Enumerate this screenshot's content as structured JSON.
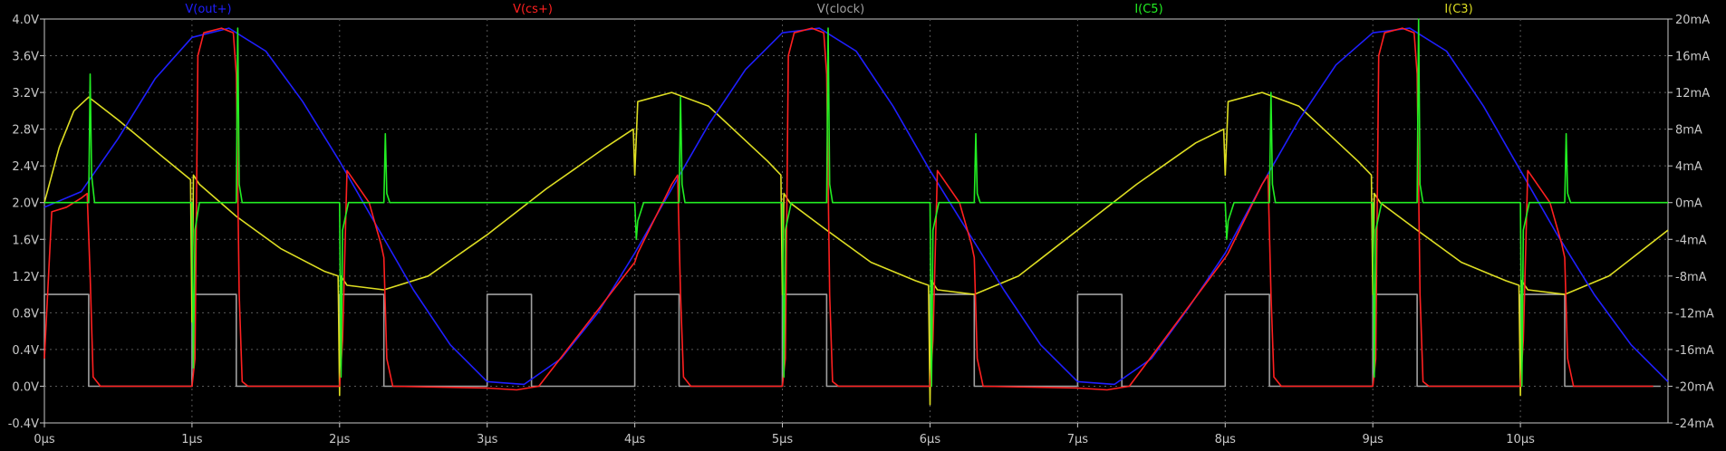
{
  "chart_data": {
    "type": "line",
    "title": "",
    "xlabel": "",
    "ylabel": "",
    "xlim": [
      0,
      11
    ],
    "ylim": [
      -0.4,
      4.0
    ],
    "y2lim": [
      -24,
      20
    ],
    "grid": true,
    "legend_placement": "top",
    "x_ticks": [
      {
        "v": 0,
        "label": "0µs"
      },
      {
        "v": 1,
        "label": "1µs"
      },
      {
        "v": 2,
        "label": "2µs"
      },
      {
        "v": 3,
        "label": "3µs"
      },
      {
        "v": 4,
        "label": "4µs"
      },
      {
        "v": 5,
        "label": "5µs"
      },
      {
        "v": 6,
        "label": "6µs"
      },
      {
        "v": 7,
        "label": "7µs"
      },
      {
        "v": 8,
        "label": "8µs"
      },
      {
        "v": 9,
        "label": "9µs"
      },
      {
        "v": 10,
        "label": "10µs"
      }
    ],
    "y_ticks": [
      {
        "v": 4.0,
        "label": "4.0V"
      },
      {
        "v": 3.6,
        "label": "3.6V"
      },
      {
        "v": 3.2,
        "label": "3.2V"
      },
      {
        "v": 2.8,
        "label": "2.8V"
      },
      {
        "v": 2.4,
        "label": "2.4V"
      },
      {
        "v": 2.0,
        "label": "2.0V"
      },
      {
        "v": 1.6,
        "label": "1.6V"
      },
      {
        "v": 1.2,
        "label": "1.2V"
      },
      {
        "v": 0.8,
        "label": "0.8V"
      },
      {
        "v": 0.4,
        "label": "0.4V"
      },
      {
        "v": 0.0,
        "label": "0.0V"
      },
      {
        "v": -0.4,
        "label": "-0.4V"
      }
    ],
    "y2_ticks": [
      {
        "v": 20,
        "label": "20mA"
      },
      {
        "v": 16,
        "label": "16mA"
      },
      {
        "v": 12,
        "label": "12mA"
      },
      {
        "v": 8,
        "label": "8mA"
      },
      {
        "v": 4,
        "label": "4mA"
      },
      {
        "v": 0,
        "label": "0mA"
      },
      {
        "v": -4,
        "label": "-4mA"
      },
      {
        "v": -8,
        "label": "-8mA"
      },
      {
        "v": -12,
        "label": "-12mA"
      },
      {
        "v": -16,
        "label": "-16mA"
      },
      {
        "v": -20,
        "label": "-20mA"
      },
      {
        "v": -24,
        "label": "-24mA"
      }
    ],
    "series": [
      {
        "name": "V(out+)",
        "color": "#1f1fff",
        "axis": "left",
        "x": [
          0,
          0.25,
          0.5,
          0.75,
          1.0,
          1.25,
          1.5,
          1.75,
          2.0,
          2.25,
          2.5,
          2.75,
          3.0,
          3.25,
          3.5,
          3.75,
          4.0,
          4.25,
          4.5,
          4.75,
          5.0,
          5.25,
          5.5,
          5.75,
          6.0,
          6.25,
          6.5,
          6.75,
          7.0,
          7.25,
          7.5,
          7.75,
          8.0,
          8.25,
          8.5,
          8.75,
          9.0,
          9.25,
          9.5,
          9.75,
          10.0,
          10.25,
          10.5,
          10.75,
          11.0
        ],
        "values": [
          1.95,
          2.12,
          2.7,
          3.35,
          3.8,
          3.9,
          3.65,
          3.1,
          2.45,
          1.75,
          1.05,
          0.45,
          0.05,
          0.02,
          0.3,
          0.8,
          1.45,
          2.15,
          2.85,
          3.45,
          3.85,
          3.9,
          3.65,
          3.05,
          2.35,
          1.7,
          1.05,
          0.45,
          0.05,
          0.02,
          0.3,
          0.85,
          1.45,
          2.2,
          2.9,
          3.5,
          3.85,
          3.9,
          3.65,
          3.05,
          2.35,
          1.65,
          1.0,
          0.45,
          0.05
        ]
      },
      {
        "name": "V(cs+)",
        "color": "#ff2020",
        "axis": "left",
        "x": [
          0,
          0.05,
          0.15,
          0.25,
          0.29,
          0.31,
          0.33,
          0.38,
          1.0,
          1.02,
          1.04,
          1.08,
          1.2,
          1.28,
          1.3,
          1.32,
          1.34,
          1.38,
          2.0,
          2.02,
          2.05,
          2.2,
          2.28,
          2.3,
          2.32,
          2.36,
          3.0,
          3.2,
          3.35,
          4.0,
          4.02,
          4.25,
          4.29,
          4.31,
          4.33,
          4.38,
          5.0,
          5.02,
          5.04,
          5.08,
          5.2,
          5.28,
          5.3,
          5.32,
          5.34,
          5.38,
          6.0,
          6.02,
          6.05,
          6.2,
          6.28,
          6.3,
          6.32,
          6.36,
          7.0,
          7.2,
          7.35,
          8.0,
          8.02,
          8.25,
          8.29,
          8.31,
          8.33,
          8.38,
          9.0,
          9.02,
          9.04,
          9.08,
          9.2,
          9.28,
          9.3,
          9.32,
          9.34,
          9.38,
          10.0,
          10.02,
          10.05,
          10.2,
          10.28,
          10.3,
          10.32,
          10.36,
          10.9
        ],
        "values": [
          0.3,
          1.9,
          1.95,
          2.05,
          2.1,
          1.2,
          0.1,
          0.0,
          0.0,
          0.3,
          3.6,
          3.85,
          3.9,
          3.85,
          3.4,
          1.0,
          0.05,
          0.0,
          0.0,
          0.5,
          2.35,
          2.0,
          1.55,
          1.4,
          0.3,
          0.0,
          -0.02,
          -0.04,
          0.0,
          1.35,
          1.45,
          2.2,
          2.3,
          1.0,
          0.1,
          0.0,
          0.0,
          0.3,
          3.6,
          3.85,
          3.9,
          3.85,
          3.4,
          1.0,
          0.05,
          0.0,
          0.0,
          0.5,
          2.35,
          2.0,
          1.55,
          1.4,
          0.3,
          0.0,
          -0.02,
          -0.04,
          0.0,
          1.4,
          1.45,
          2.2,
          2.3,
          1.0,
          0.1,
          0.0,
          0.0,
          0.3,
          3.6,
          3.85,
          3.9,
          3.85,
          3.4,
          1.0,
          0.05,
          0.0,
          0.0,
          0.5,
          2.35,
          2.0,
          1.55,
          1.4,
          0.3,
          0.0,
          0.0
        ]
      },
      {
        "name": "V(clock)",
        "color": "#a0a0a0",
        "axis": "left",
        "x": [
          0,
          0.0,
          0.3,
          0.3,
          1.0,
          1.0,
          1.3,
          1.3,
          2.0,
          2.0,
          2.3,
          2.3,
          3.0,
          3.0,
          3.3,
          3.3,
          4.0,
          4.0,
          4.3,
          4.3,
          5.0,
          5.0,
          5.3,
          5.3,
          6.0,
          6.0,
          6.3,
          6.3,
          7.0,
          7.0,
          7.3,
          7.3,
          8.0,
          8.0,
          8.3,
          8.3,
          9.0,
          9.0,
          9.3,
          9.3,
          10.0,
          10.0,
          10.3,
          10.3,
          10.95
        ],
        "values": [
          0,
          1,
          1,
          0,
          0,
          1,
          1,
          0,
          0,
          1,
          1,
          0,
          0,
          1,
          1,
          0,
          0,
          1,
          1,
          0,
          0,
          1,
          1,
          0,
          0,
          1,
          1,
          0,
          0,
          1,
          1,
          0,
          0,
          1,
          1,
          0,
          0,
          1,
          1,
          0,
          0,
          1,
          1,
          0,
          0
        ]
      },
      {
        "name": "I(C5)",
        "color": "#22ee22",
        "axis": "right",
        "x": [
          0,
          0.3,
          0.31,
          0.32,
          0.34,
          0.4,
          1.0,
          1.01,
          1.02,
          1.05,
          1.3,
          1.31,
          1.32,
          1.34,
          2.0,
          2.01,
          2.02,
          2.06,
          2.3,
          2.31,
          2.32,
          2.34,
          4.0,
          4.01,
          4.02,
          4.06,
          4.3,
          4.31,
          4.32,
          4.34,
          5.0,
          5.01,
          5.02,
          5.06,
          5.3,
          5.31,
          5.32,
          5.34,
          6.0,
          6.01,
          6.02,
          6.06,
          6.3,
          6.31,
          6.32,
          6.34,
          8.0,
          8.01,
          8.02,
          8.06,
          8.3,
          8.31,
          8.32,
          8.34,
          9.0,
          9.01,
          9.02,
          9.06,
          9.3,
          9.31,
          9.32,
          9.34,
          10.0,
          10.01,
          10.02,
          10.06,
          10.3,
          10.31,
          10.32,
          10.34,
          11.0
        ],
        "values": [
          0,
          0,
          14,
          3,
          0,
          0,
          0,
          -18,
          -3,
          0,
          0,
          19,
          2,
          0,
          0,
          -19,
          -3,
          0,
          0,
          7.5,
          1,
          0,
          0,
          -4,
          -2,
          0,
          0,
          11.5,
          2,
          0,
          0,
          -19,
          -3,
          0,
          0,
          19,
          2,
          0,
          0,
          -20,
          -3,
          0,
          0,
          7.5,
          1,
          0,
          0,
          -4,
          -2,
          0,
          0,
          12,
          2,
          0,
          0,
          -19,
          -3,
          0,
          0,
          20,
          2,
          0,
          0,
          -20,
          -3,
          0,
          0,
          7.5,
          1,
          0,
          0
        ]
      },
      {
        "name": "I(C3)",
        "color": "#dddd22",
        "axis": "right",
        "x": [
          0,
          0.1,
          0.2,
          0.3,
          0.5,
          0.8,
          0.99,
          1.0,
          1.01,
          1.05,
          1.3,
          1.6,
          1.9,
          1.99,
          2.0,
          2.01,
          2.05,
          2.3,
          2.6,
          3.0,
          3.4,
          3.8,
          3.99,
          4.0,
          4.02,
          4.25,
          4.5,
          4.9,
          4.99,
          5.0,
          5.01,
          5.05,
          5.3,
          5.6,
          5.9,
          5.99,
          6.0,
          6.01,
          6.05,
          6.3,
          6.6,
          7.0,
          7.4,
          7.8,
          7.99,
          8.0,
          8.02,
          8.25,
          8.5,
          8.9,
          8.99,
          9.0,
          9.01,
          9.05,
          9.3,
          9.6,
          9.9,
          9.99,
          10.0,
          10.01,
          10.05,
          10.3,
          10.6,
          11.0
        ],
        "values": [
          0,
          6,
          10,
          11.5,
          9,
          5,
          2.5,
          -13,
          3,
          2,
          -1.5,
          -5,
          -7.5,
          -8,
          -21,
          -8,
          -9,
          -9.5,
          -8,
          -3.5,
          1.5,
          6,
          8,
          3,
          11,
          12,
          10.5,
          4.5,
          3,
          -10,
          1,
          0,
          -3,
          -6.5,
          -8.5,
          -9,
          -22,
          -8.5,
          -9.5,
          -10,
          -8,
          -3,
          2,
          6.5,
          8,
          3,
          11,
          12,
          10.5,
          4.5,
          3,
          -10,
          1,
          0,
          -3,
          -6.5,
          -8.5,
          -9,
          -21,
          -8.5,
          -9.5,
          -10,
          -8,
          -3
        ]
      }
    ]
  }
}
